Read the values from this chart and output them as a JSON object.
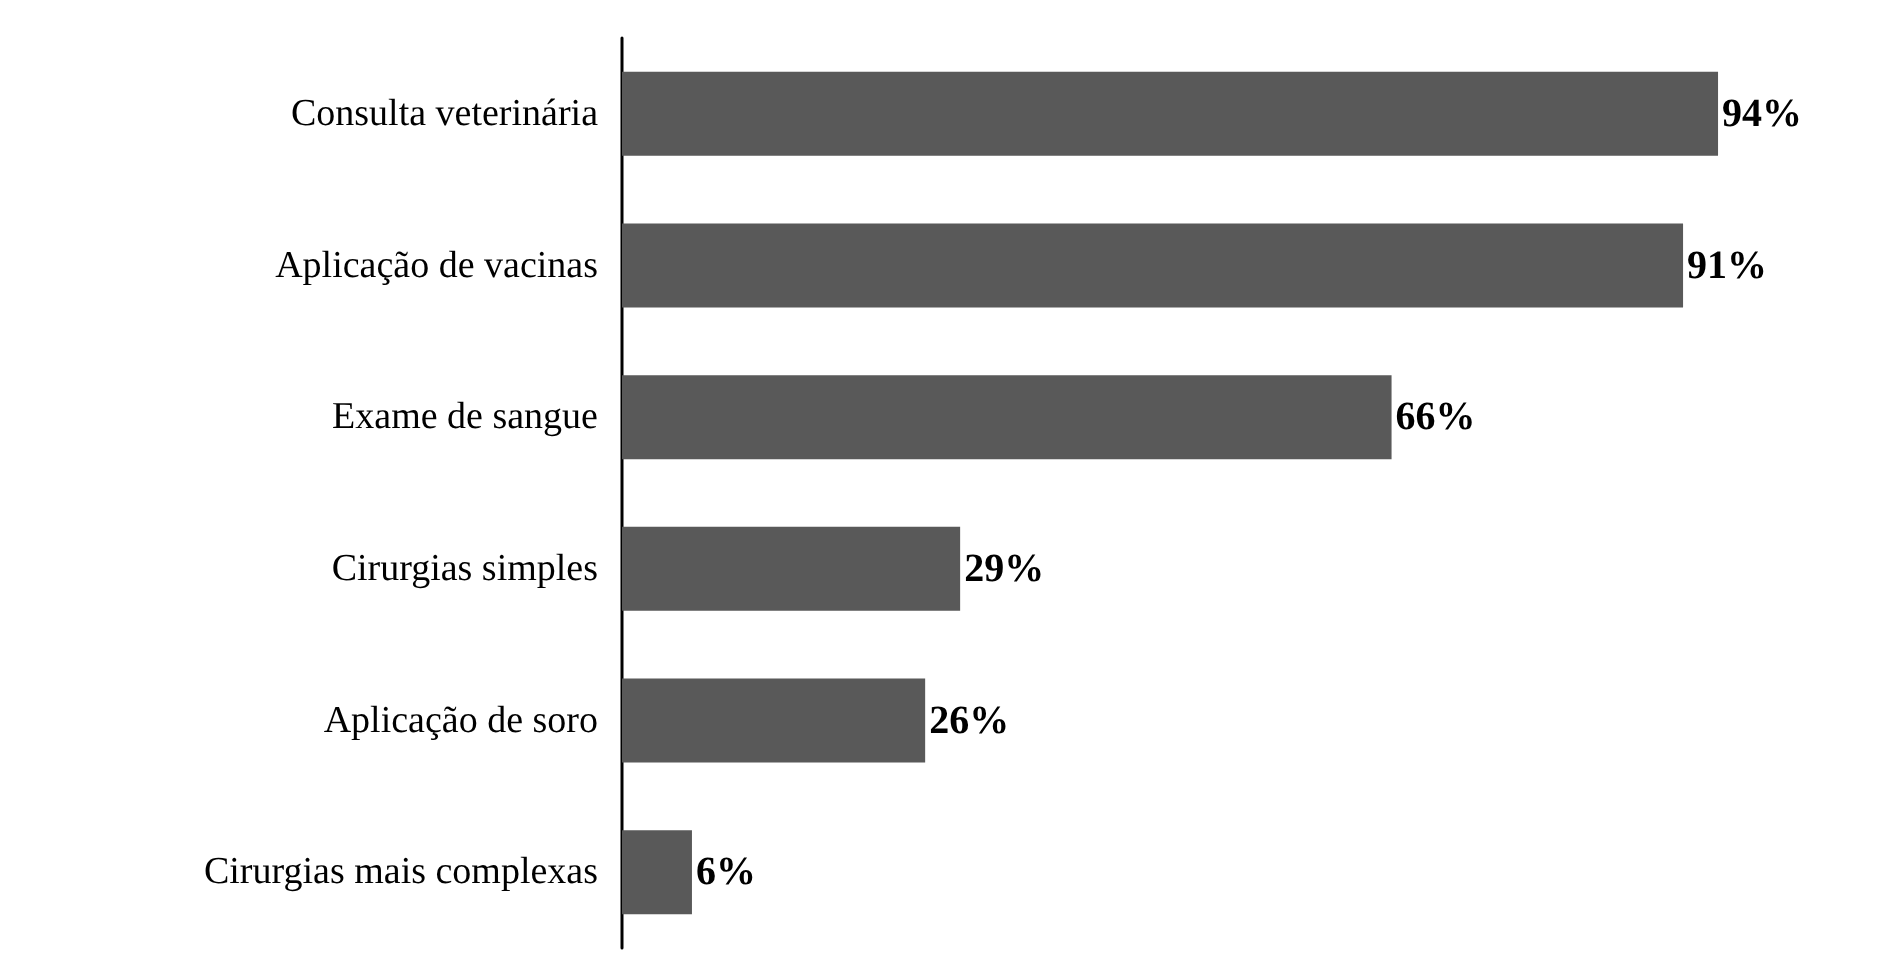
{
  "chart_data": {
    "type": "bar",
    "orientation": "horizontal",
    "categories": [
      "Consulta veterinária",
      "Aplicação de vacinas",
      "Exame de sangue",
      "Cirurgias simples",
      "Aplicação de soro",
      "Cirurgias mais complexas"
    ],
    "values": [
      94,
      91,
      66,
      29,
      26,
      6
    ],
    "value_labels": [
      "94%",
      "91%",
      "66%",
      "29%",
      "26%",
      "6%"
    ],
    "color": "#595959"
  }
}
